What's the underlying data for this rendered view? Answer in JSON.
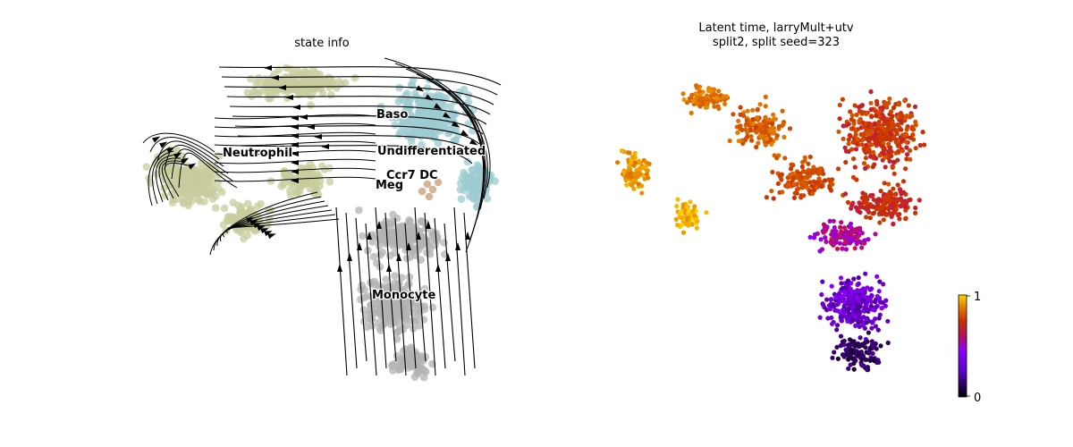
{
  "chart_data": [
    {
      "type": "scatter",
      "subtype": "umap-embedding-with-velocity-streamlines",
      "title": "state info",
      "legend": "on-data",
      "axes_visible": false,
      "cluster_labels": [
        "Baso",
        "Undifferentiated",
        "Neutrophil",
        "Ccr7 DC",
        "Meg",
        "Monocyte"
      ],
      "cluster_colors": {
        "Neutrophil": "#c8cc9e",
        "Baso": "#9ccbd2",
        "Undifferentiated": "#9ccbd2",
        "Ccr7 DC": "#c9a27c",
        "Meg": "#9ccbd2",
        "Monocyte": "#b3b3b3"
      },
      "streamline_color": "#000000"
    },
    {
      "type": "scatter",
      "subtype": "umap-embedding-colored-by-value",
      "title_lines": [
        "Latent time, larryMult+utv",
        "split2, split seed=323"
      ],
      "axes_visible": false,
      "colorbar": {
        "min": 0,
        "max": 1,
        "tick_labels": [
          "0",
          "1"
        ],
        "colormap": "gnuplot",
        "colors": [
          "#000000",
          "#7a00ff",
          "#c0004a",
          "#d95a00",
          "#ffd700"
        ]
      }
    }
  ]
}
